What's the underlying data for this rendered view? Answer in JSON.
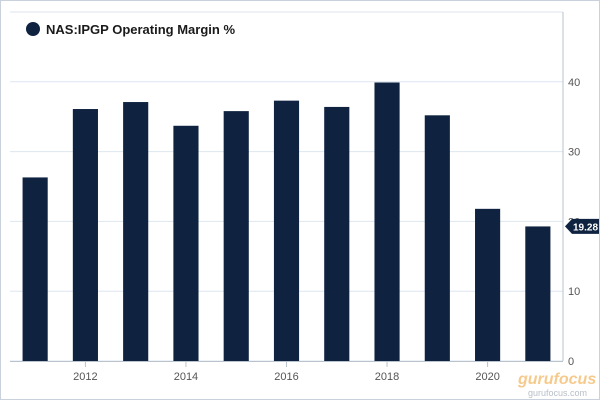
{
  "chart_data": {
    "type": "bar",
    "legend": {
      "label": "NAS:IPGP Operating Margin %",
      "position": "top-left"
    },
    "x_tick_labels": [
      "2012",
      "2014",
      "2016",
      "2018",
      "2020"
    ],
    "categories": [
      "2011",
      "2012",
      "2013",
      "2014",
      "2015",
      "2016",
      "2017",
      "2018",
      "2019",
      "2020",
      "2021"
    ],
    "values": [
      26.3,
      36.1,
      37.1,
      33.7,
      35.8,
      37.3,
      36.4,
      39.9,
      35.2,
      21.8,
      19.28
    ],
    "ylim": [
      0,
      50
    ],
    "y_ticks": [
      0,
      10,
      20,
      30,
      40
    ],
    "y_axis_side": "right",
    "grid": "horizontal",
    "last_value_label": "19.28",
    "bar_color": "#0f2340",
    "grid_color": "#dde6ef",
    "accent_color": "#0f2340"
  },
  "watermark": {
    "brand": "gurufocus",
    "url": "gurufocus.com"
  }
}
